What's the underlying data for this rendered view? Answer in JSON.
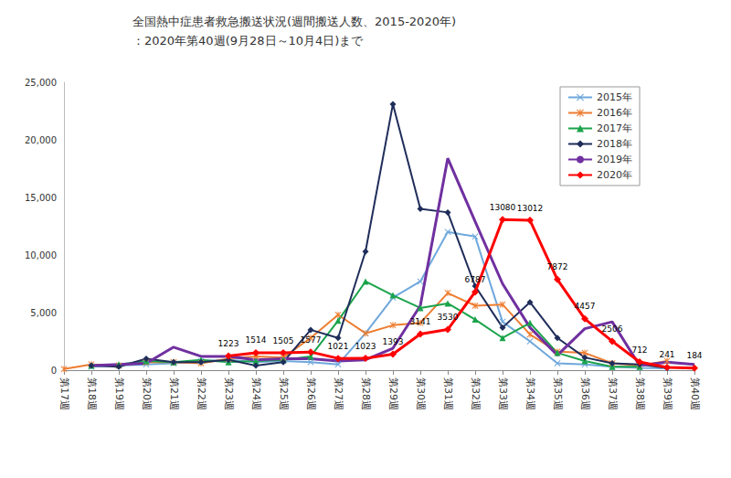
{
  "chart_data": {
    "type": "line",
    "title": "全国熱中症患者救急搬送状況(週間搬送人数、2015-2020年)",
    "subtitle": "：2020年第40週(9月28日～10月4日)まで",
    "categories": [
      "第17週",
      "第18週",
      "第19週",
      "第20週",
      "第21週",
      "第22週",
      "第23週",
      "第24週",
      "第25週",
      "第26週",
      "第27週",
      "第28週",
      "第29週",
      "第30週",
      "第31週",
      "第32週",
      "第33週",
      "第34週",
      "第35週",
      "第36週",
      "第37週",
      "第38週",
      "第39週",
      "第40週"
    ],
    "ylim": [
      0,
      25000
    ],
    "yticks": [
      0,
      5000,
      10000,
      15000,
      20000,
      25000
    ],
    "grid": false,
    "legend": "upper right",
    "series": [
      {
        "name": "2015年",
        "color": "#6fa8dc",
        "marker": "x",
        "data_labels": false,
        "values": [
          null,
          300,
          400,
          500,
          600,
          800,
          900,
          700,
          800,
          700,
          500,
          3200,
          6300,
          7700,
          12000,
          11600,
          4200,
          2500,
          600,
          500,
          300,
          200,
          150,
          null
        ]
      },
      {
        "name": "2016年",
        "color": "#ed7d31",
        "marker": "star",
        "data_labels": false,
        "values": [
          100,
          500,
          400,
          700,
          700,
          600,
          1000,
          1200,
          1100,
          2800,
          4800,
          3200,
          3900,
          4100,
          6700,
          5600,
          5700,
          3100,
          1600,
          1500,
          600,
          400,
          800,
          null
        ]
      },
      {
        "name": "2017年",
        "color": "#1aa34a",
        "marker": "triangle",
        "data_labels": false,
        "values": [
          null,
          400,
          500,
          800,
          700,
          900,
          700,
          800,
          900,
          1200,
          4300,
          7700,
          6500,
          5400,
          5800,
          4400,
          2800,
          4100,
          1500,
          800,
          300,
          300,
          null,
          null
        ]
      },
      {
        "name": "2018年",
        "color": "#1f2d5a",
        "marker": "diamond",
        "data_labels": false,
        "values": [
          null,
          400,
          300,
          1000,
          700,
          700,
          900,
          400,
          700,
          3500,
          2800,
          10300,
          23100,
          14000,
          13700,
          7300,
          3700,
          5900,
          2800,
          1100,
          600,
          500,
          200,
          null
        ]
      },
      {
        "name": "2019年",
        "color": "#7030a0",
        "marker": "none",
        "data_labels": false,
        "values": [
          null,
          400,
          500,
          600,
          2000,
          1200,
          1200,
          900,
          1000,
          1000,
          800,
          900,
          1900,
          5600,
          18400,
          12900,
          7500,
          3700,
          1300,
          3600,
          4200,
          400,
          700,
          500
        ]
      },
      {
        "name": "2020年",
        "color": "#ff0000",
        "marker": "diamond",
        "data_labels": true,
        "values": [
          null,
          null,
          null,
          null,
          null,
          null,
          1223,
          1514,
          1505,
          1577,
          1021,
          1023,
          1393,
          3141,
          3530,
          6787,
          13080,
          13012,
          7872,
          4457,
          2506,
          712,
          241,
          184
        ]
      }
    ]
  }
}
